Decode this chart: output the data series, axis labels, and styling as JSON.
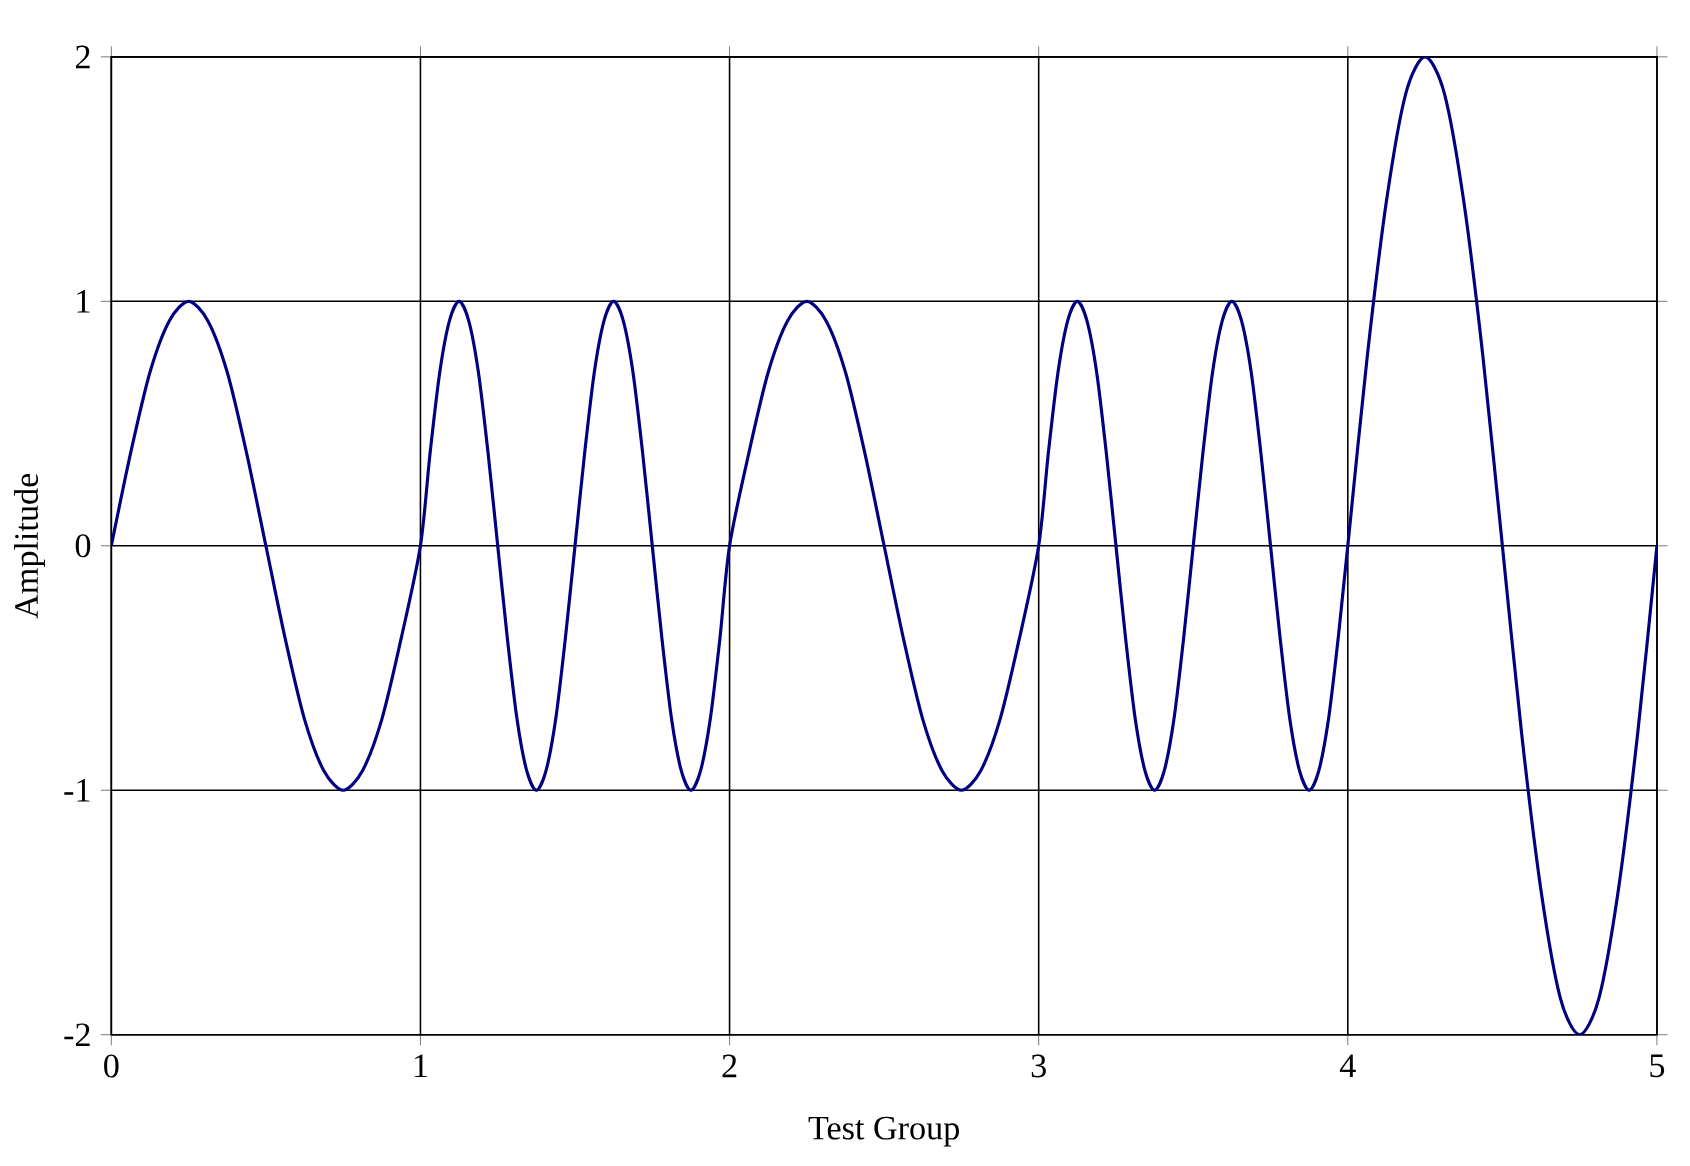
{
  "chart_data": {
    "type": "line",
    "xlabel": "Test Group",
    "ylabel": "Amplitude",
    "xlim": [
      0,
      5
    ],
    "ylim": [
      -2,
      2
    ],
    "xticks": [
      0,
      1,
      2,
      3,
      4,
      5
    ],
    "yticks": [
      -2,
      -1,
      0,
      1,
      2
    ],
    "grid": true,
    "marker": "none",
    "line_style": "solid",
    "series": [
      {
        "color": "#000080",
        "x": [
          0,
          0.0625,
          0.125,
          0.1875,
          0.25,
          0.3125,
          0.375,
          0.4375,
          0.5,
          0.5625,
          0.625,
          0.6875,
          0.75,
          0.8125,
          0.875,
          0.9375,
          1,
          1.03125,
          1.0625,
          1.09375,
          1.125,
          1.15625,
          1.1875,
          1.21875,
          1.25,
          1.28125,
          1.3125,
          1.34375,
          1.375,
          1.40625,
          1.4375,
          1.46875,
          1.5,
          1.53125,
          1.5625,
          1.59375,
          1.625,
          1.65625,
          1.6875,
          1.71875,
          1.75,
          1.78125,
          1.8125,
          1.84375,
          1.875,
          1.90625,
          1.9375,
          1.96875,
          2,
          2.0625,
          2.125,
          2.1875,
          2.25,
          2.3125,
          2.375,
          2.4375,
          2.5,
          2.5625,
          2.625,
          2.6875,
          2.75,
          2.8125,
          2.875,
          2.9375,
          3,
          3.03125,
          3.0625,
          3.09375,
          3.125,
          3.15625,
          3.1875,
          3.21875,
          3.25,
          3.28125,
          3.3125,
          3.34375,
          3.375,
          3.40625,
          3.4375,
          3.46875,
          3.5,
          3.53125,
          3.5625,
          3.59375,
          3.625,
          3.65625,
          3.6875,
          3.71875,
          3.75,
          3.78125,
          3.8125,
          3.84375,
          3.875,
          3.90625,
          3.9375,
          3.96875,
          4,
          4.0625,
          4.125,
          4.1875,
          4.25,
          4.3125,
          4.375,
          4.4375,
          4.5,
          4.5625,
          4.625,
          4.6875,
          4.75,
          4.8125,
          4.875,
          4.9375,
          5
        ],
        "values": [
          0,
          0.38,
          0.71,
          0.92,
          1,
          0.92,
          0.71,
          0.38,
          0,
          -0.38,
          -0.71,
          -0.92,
          -1,
          -0.92,
          -0.71,
          -0.38,
          0,
          0.38,
          0.71,
          0.92,
          1,
          0.92,
          0.71,
          0.38,
          0,
          -0.38,
          -0.71,
          -0.92,
          -1,
          -0.92,
          -0.71,
          -0.38,
          0,
          0.38,
          0.71,
          0.92,
          1,
          0.92,
          0.71,
          0.38,
          0,
          -0.38,
          -0.71,
          -0.92,
          -1,
          -0.92,
          -0.71,
          -0.38,
          0,
          0.38,
          0.71,
          0.92,
          1,
          0.92,
          0.71,
          0.38,
          0,
          -0.38,
          -0.71,
          -0.92,
          -1,
          -0.92,
          -0.71,
          -0.38,
          0,
          0.38,
          0.71,
          0.92,
          1,
          0.92,
          0.71,
          0.38,
          0,
          -0.38,
          -0.71,
          -0.92,
          -1,
          -0.92,
          -0.71,
          -0.38,
          0,
          0.38,
          0.71,
          0.92,
          1,
          0.92,
          0.71,
          0.38,
          0,
          -0.38,
          -0.71,
          -0.92,
          -1,
          -0.92,
          -0.71,
          -0.38,
          0,
          0.77,
          1.41,
          1.85,
          2,
          1.85,
          1.41,
          0.77,
          0,
          -0.77,
          -1.41,
          -1.85,
          -2,
          -1.85,
          -1.41,
          -0.77,
          0
        ]
      }
    ]
  }
}
